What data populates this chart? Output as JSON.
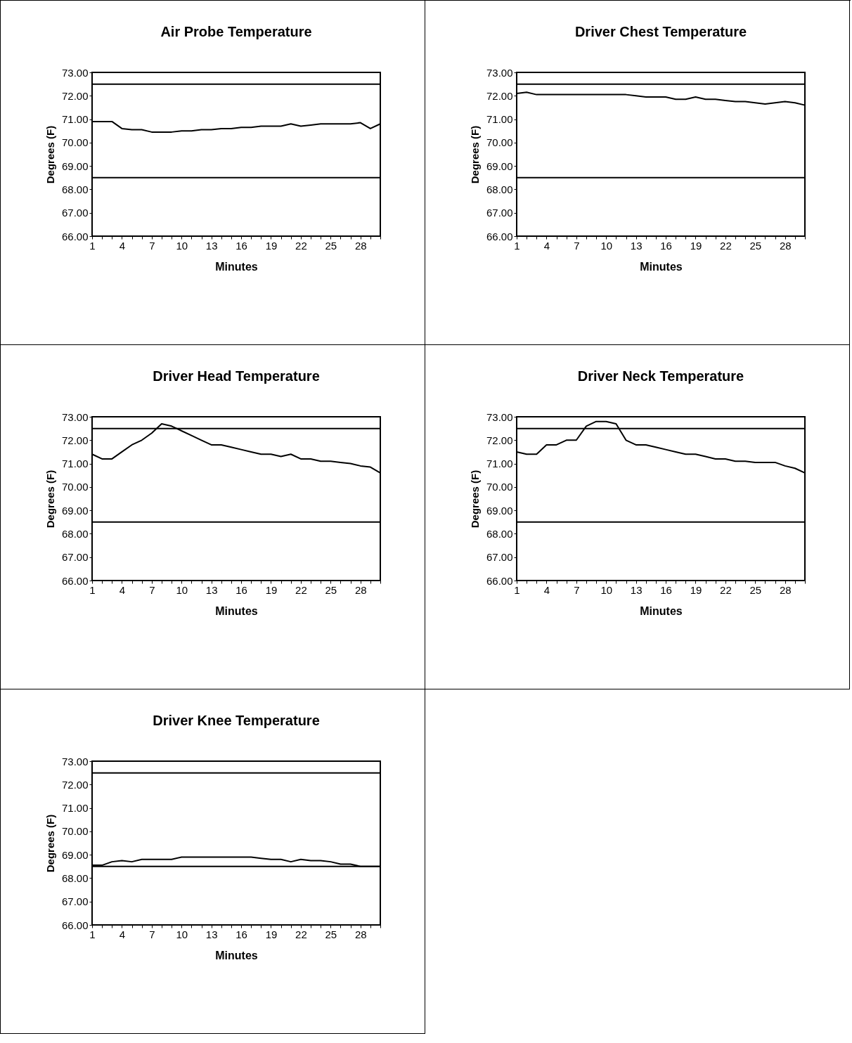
{
  "chart_data": [
    {
      "type": "line",
      "title": "Air Probe Temperature",
      "xlabel": "Minutes",
      "ylabel": "Degrees (F)",
      "categories": [
        "1",
        null,
        null,
        "4",
        null,
        null,
        "7",
        null,
        null,
        "10",
        null,
        null,
        "13",
        null,
        null,
        "16",
        null,
        null,
        "19",
        null,
        null,
        "22",
        null,
        null,
        "25",
        null,
        null,
        "28",
        null,
        null
      ],
      "series": [
        {
          "color": "#000000",
          "values": [
            70.9,
            70.9,
            70.9,
            70.6,
            70.55,
            70.55,
            70.45,
            70.45,
            70.45,
            70.5,
            70.5,
            70.55,
            70.55,
            70.6,
            70.6,
            70.65,
            70.65,
            70.7,
            70.7,
            70.7,
            70.8,
            70.7,
            70.75,
            70.8,
            70.8,
            70.8,
            70.8,
            70.85,
            70.6,
            70.8
          ]
        }
      ],
      "ylim": [
        66,
        73
      ],
      "yticks": [
        {
          "value": 66,
          "label": "66.00"
        },
        {
          "value": 67,
          "label": "67.00"
        },
        {
          "value": 68,
          "label": "68.00"
        },
        {
          "value": 69,
          "label": "69.00"
        },
        {
          "value": 70,
          "label": "70.00"
        },
        {
          "value": 71,
          "label": "71.00"
        },
        {
          "value": 72,
          "label": "72.00"
        },
        {
          "value": 73,
          "label": "73.00"
        }
      ],
      "ref_lines": [
        {
          "axis": "y",
          "value": 72.5,
          "color": "#000000"
        },
        {
          "axis": "y",
          "value": 68.5,
          "color": "#000000"
        }
      ]
    },
    {
      "type": "line",
      "title": "Driver Chest Temperature",
      "xlabel": "Minutes",
      "ylabel": "Degrees (F)",
      "categories": [
        "1",
        null,
        null,
        "4",
        null,
        null,
        "7",
        null,
        null,
        "10",
        null,
        null,
        "13",
        null,
        null,
        "16",
        null,
        null,
        "19",
        null,
        null,
        "22",
        null,
        null,
        "25",
        null,
        null,
        "28",
        null,
        null
      ],
      "series": [
        {
          "color": "#000000",
          "values": [
            72.1,
            72.15,
            72.05,
            72.05,
            72.05,
            72.05,
            72.05,
            72.05,
            72.05,
            72.05,
            72.05,
            72.05,
            72.0,
            71.95,
            71.95,
            71.95,
            71.85,
            71.85,
            71.95,
            71.85,
            71.85,
            71.8,
            71.75,
            71.75,
            71.7,
            71.65,
            71.7,
            71.75,
            71.7,
            71.6
          ]
        }
      ],
      "ylim": [
        66,
        73
      ],
      "yticks": [
        {
          "value": 66,
          "label": "66.00"
        },
        {
          "value": 67,
          "label": "67.00"
        },
        {
          "value": 68,
          "label": "68.00"
        },
        {
          "value": 69,
          "label": "69.00"
        },
        {
          "value": 70,
          "label": "70.00"
        },
        {
          "value": 71,
          "label": "71.00"
        },
        {
          "value": 72,
          "label": "72.00"
        },
        {
          "value": 73,
          "label": "73.00"
        }
      ],
      "ref_lines": [
        {
          "axis": "y",
          "value": 72.5,
          "color": "#000000"
        },
        {
          "axis": "y",
          "value": 68.5,
          "color": "#000000"
        }
      ]
    },
    {
      "type": "line",
      "title": "Driver Head Temperature",
      "xlabel": "Minutes",
      "ylabel": "Degrees (F)",
      "categories": [
        "1",
        null,
        null,
        "4",
        null,
        null,
        "7",
        null,
        null,
        "10",
        null,
        null,
        "13",
        null,
        null,
        "16",
        null,
        null,
        "19",
        null,
        null,
        "22",
        null,
        null,
        "25",
        null,
        null,
        "28",
        null,
        null
      ],
      "series": [
        {
          "color": "#000000",
          "values": [
            71.4,
            71.2,
            71.2,
            71.5,
            71.8,
            72.0,
            72.3,
            72.7,
            72.6,
            72.4,
            72.2,
            72.0,
            71.8,
            71.8,
            71.7,
            71.6,
            71.5,
            71.4,
            71.4,
            71.3,
            71.4,
            71.2,
            71.2,
            71.1,
            71.1,
            71.05,
            71.0,
            70.9,
            70.85,
            70.6
          ]
        }
      ],
      "ylim": [
        66,
        73
      ],
      "yticks": [
        {
          "value": 66,
          "label": "66.00"
        },
        {
          "value": 67,
          "label": "67.00"
        },
        {
          "value": 68,
          "label": "68.00"
        },
        {
          "value": 69,
          "label": "69.00"
        },
        {
          "value": 70,
          "label": "70.00"
        },
        {
          "value": 71,
          "label": "71.00"
        },
        {
          "value": 72,
          "label": "72.00"
        },
        {
          "value": 73,
          "label": "73.00"
        }
      ],
      "ref_lines": [
        {
          "axis": "y",
          "value": 72.5,
          "color": "#000000"
        },
        {
          "axis": "y",
          "value": 68.5,
          "color": "#000000"
        }
      ]
    },
    {
      "type": "line",
      "title": "Driver Neck Temperature",
      "xlabel": "Minutes",
      "ylabel": "Degrees (F)",
      "categories": [
        "1",
        null,
        null,
        "4",
        null,
        null,
        "7",
        null,
        null,
        "10",
        null,
        null,
        "13",
        null,
        null,
        "16",
        null,
        null,
        "19",
        null,
        null,
        "22",
        null,
        null,
        "25",
        null,
        null,
        "28",
        null,
        null
      ],
      "series": [
        {
          "color": "#000000",
          "values": [
            71.5,
            71.4,
            71.4,
            71.8,
            71.8,
            72.0,
            72.0,
            72.6,
            72.8,
            72.8,
            72.7,
            72.0,
            71.8,
            71.8,
            71.7,
            71.6,
            71.5,
            71.4,
            71.4,
            71.3,
            71.2,
            71.2,
            71.1,
            71.1,
            71.05,
            71.05,
            71.05,
            70.9,
            70.8,
            70.6
          ]
        }
      ],
      "ylim": [
        66,
        73
      ],
      "yticks": [
        {
          "value": 66,
          "label": "66.00"
        },
        {
          "value": 67,
          "label": "67.00"
        },
        {
          "value": 68,
          "label": "68.00"
        },
        {
          "value": 69,
          "label": "69.00"
        },
        {
          "value": 70,
          "label": "70.00"
        },
        {
          "value": 71,
          "label": "71.00"
        },
        {
          "value": 72,
          "label": "72.00"
        },
        {
          "value": 73,
          "label": "73.00"
        }
      ],
      "ref_lines": [
        {
          "axis": "y",
          "value": 72.5,
          "color": "#000000"
        },
        {
          "axis": "y",
          "value": 68.5,
          "color": "#000000"
        }
      ]
    },
    {
      "type": "line",
      "title": "Driver Knee Temperature",
      "xlabel": "Minutes",
      "ylabel": "Degrees (F)",
      "categories": [
        "1",
        null,
        null,
        "4",
        null,
        null,
        "7",
        null,
        null,
        "10",
        null,
        null,
        "13",
        null,
        null,
        "16",
        null,
        null,
        "19",
        null,
        null,
        "22",
        null,
        null,
        "25",
        null,
        null,
        "28",
        null,
        null
      ],
      "series": [
        {
          "color": "#000000",
          "values": [
            68.55,
            68.55,
            68.7,
            68.75,
            68.7,
            68.8,
            68.8,
            68.8,
            68.8,
            68.9,
            68.9,
            68.9,
            68.9,
            68.9,
            68.9,
            68.9,
            68.9,
            68.85,
            68.8,
            68.8,
            68.7,
            68.8,
            68.75,
            68.75,
            68.7,
            68.6,
            68.6,
            68.5,
            68.5,
            68.5
          ]
        }
      ],
      "ylim": [
        66,
        73
      ],
      "yticks": [
        {
          "value": 66,
          "label": "66.00"
        },
        {
          "value": 67,
          "label": "67.00"
        },
        {
          "value": 68,
          "label": "68.00"
        },
        {
          "value": 69,
          "label": "69.00"
        },
        {
          "value": 70,
          "label": "70.00"
        },
        {
          "value": 71,
          "label": "71.00"
        },
        {
          "value": 72,
          "label": "72.00"
        },
        {
          "value": 73,
          "label": "73.00"
        }
      ],
      "ref_lines": [
        {
          "axis": "y",
          "value": 72.5,
          "color": "#000000"
        },
        {
          "axis": "y",
          "value": 68.5,
          "color": "#000000"
        }
      ]
    }
  ]
}
